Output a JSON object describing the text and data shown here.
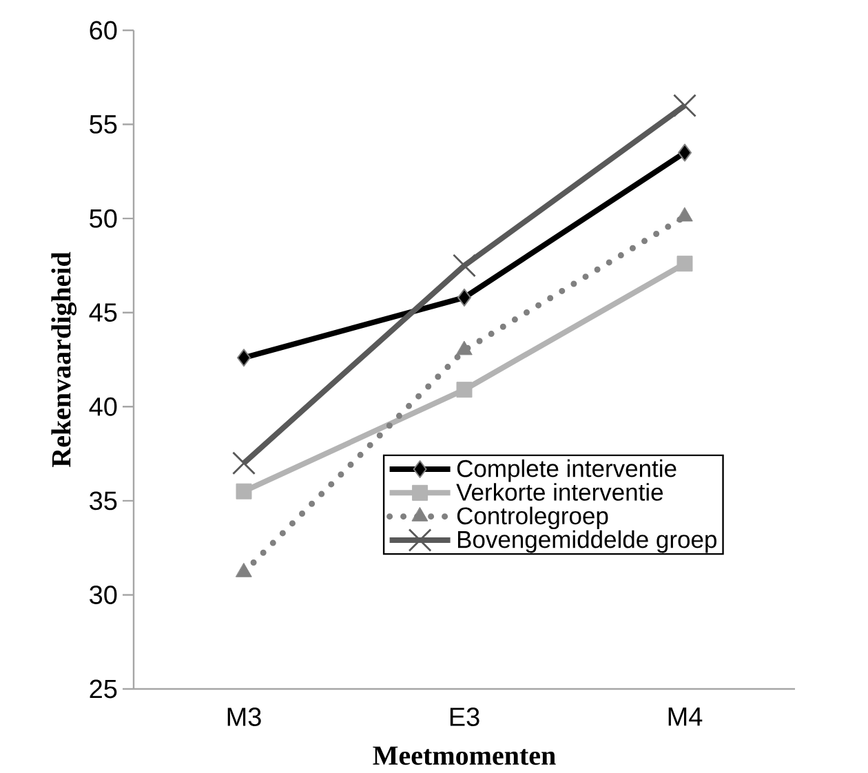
{
  "chart_data": {
    "type": "line",
    "xlabel": "Meetmomenten",
    "ylabel": "Rekenvaardigheid",
    "categories": [
      "M3",
      "E3",
      "M4"
    ],
    "series": [
      {
        "name": "Complete interventie",
        "color": "#000000",
        "marker": "diamond",
        "line_style": "solid",
        "values": [
          42.6,
          45.8,
          53.5
        ]
      },
      {
        "name": "Verkorte interventie",
        "color": "#b3b3b3",
        "marker": "square",
        "line_style": "solid",
        "values": [
          35.5,
          40.9,
          47.6
        ]
      },
      {
        "name": "Controlegroep",
        "color": "#808080",
        "marker": "triangle",
        "line_style": "dotted",
        "values": [
          31.2,
          43.0,
          50.1
        ]
      },
      {
        "name": "Bovengemiddelde groep",
        "color": "#595959",
        "marker": "cross",
        "line_style": "solid",
        "values": [
          37.0,
          47.5,
          56.0
        ]
      }
    ],
    "ylim": [
      25,
      60
    ],
    "yticks": [
      25,
      30,
      35,
      40,
      45,
      50,
      55,
      60
    ],
    "grid": false,
    "legend": "bottom right"
  }
}
